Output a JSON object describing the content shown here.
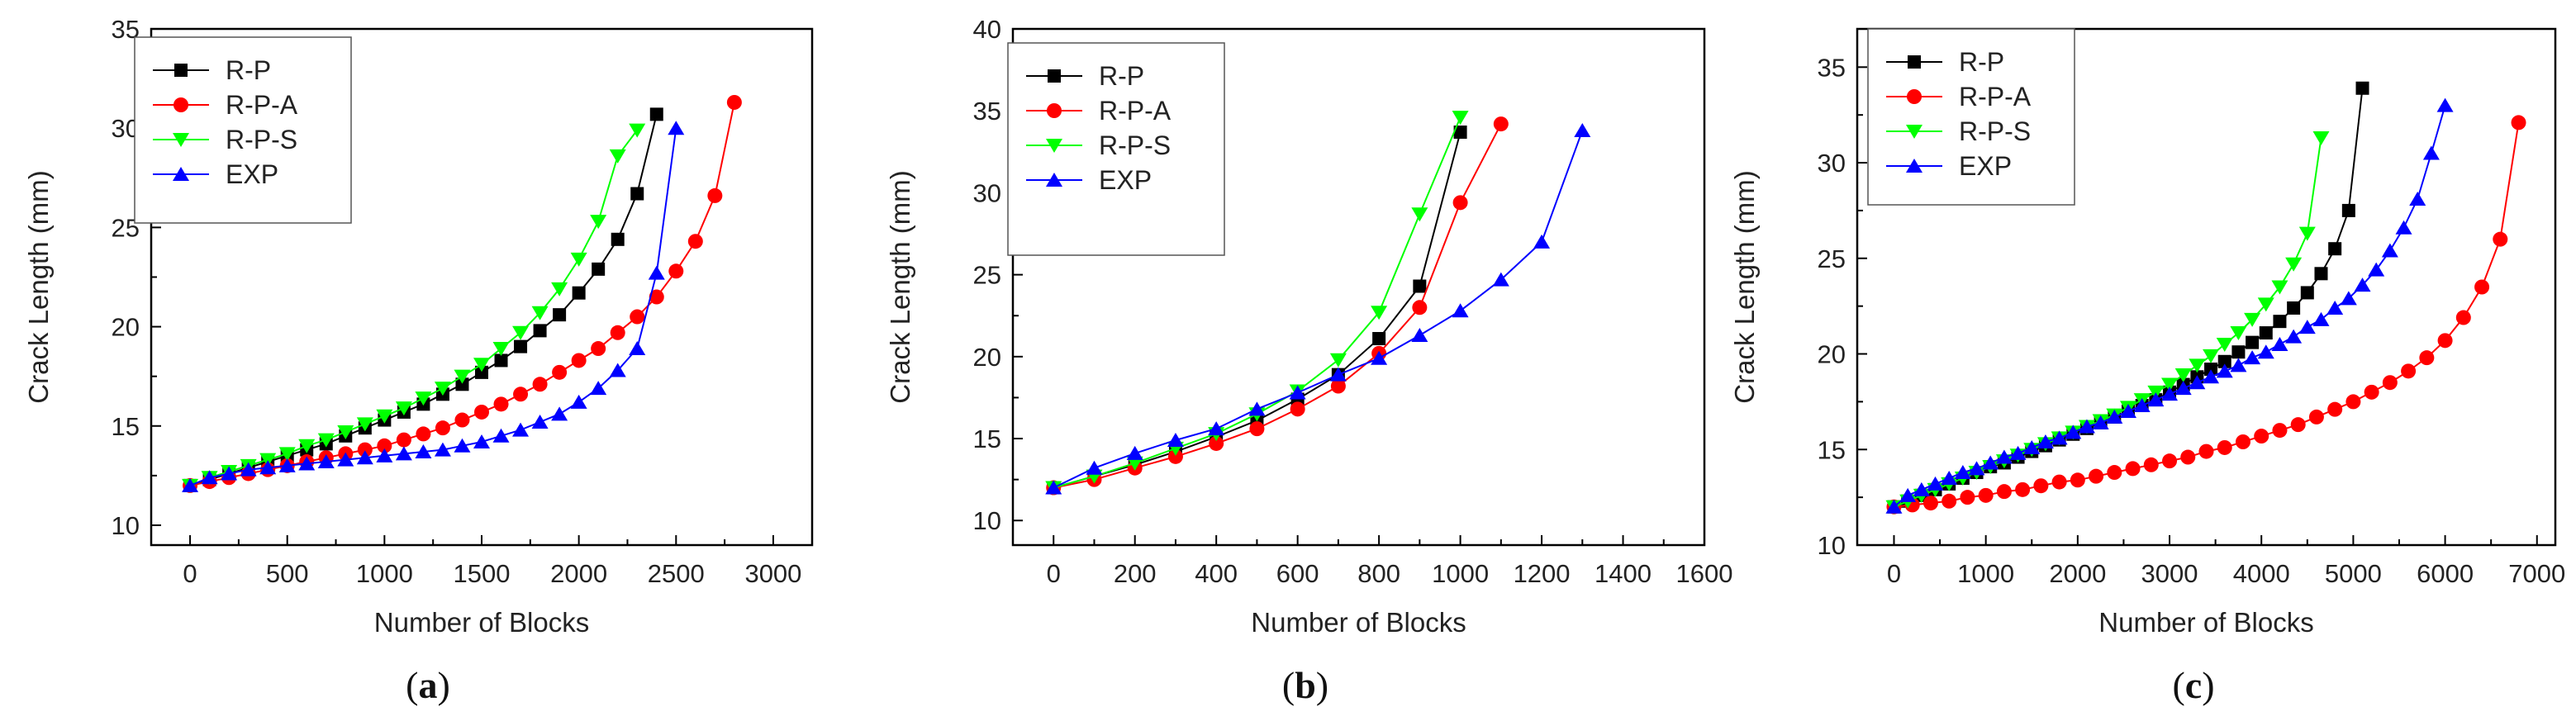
{
  "colors": {
    "R-P": "#000000",
    "R-P-A": "#ff0000",
    "R-P-S": "#00ff00",
    "EXP": "#0000ff"
  },
  "chart_data": [
    {
      "type": "line",
      "caption": "a",
      "xlabel": "Number of Blocks",
      "ylabel": "Crack Length (mm)",
      "xlim": [
        -200,
        3200
      ],
      "ylim": [
        9,
        35
      ],
      "xticks": [
        0,
        500,
        1000,
        1500,
        2000,
        2500,
        3000
      ],
      "xtick_labels": [
        "0",
        "500",
        "1000",
        "1500",
        "2000",
        "2500",
        "3000"
      ],
      "yticks": [
        10,
        15,
        20,
        25,
        30,
        35
      ],
      "ytick_labels": [
        "10",
        "15",
        "20",
        "25",
        "30",
        "35"
      ],
      "legend_position": "top-left",
      "series": [
        {
          "name": "R-P",
          "marker": "square",
          "x": [
            0,
            100,
            200,
            300,
            400,
            500,
            600,
            700,
            800,
            900,
            1000,
            1100,
            1200,
            1300,
            1400,
            1500,
            1600,
            1700,
            1800,
            1900,
            2000,
            2100,
            2200,
            2300,
            2400
          ],
          "y": [
            12.0,
            12.3,
            12.6,
            12.9,
            13.2,
            13.5,
            13.8,
            14.1,
            14.5,
            14.9,
            15.3,
            15.7,
            16.1,
            16.6,
            17.1,
            17.7,
            18.3,
            19.0,
            19.8,
            20.6,
            21.7,
            22.9,
            24.4,
            26.7,
            30.7
          ]
        },
        {
          "name": "R-P-A",
          "marker": "circle",
          "x": [
            0,
            100,
            200,
            300,
            400,
            500,
            600,
            700,
            800,
            900,
            1000,
            1100,
            1200,
            1300,
            1400,
            1500,
            1600,
            1700,
            1800,
            1900,
            2000,
            2100,
            2200,
            2300,
            2400,
            2500,
            2600,
            2700,
            2800
          ],
          "y": [
            12.0,
            12.2,
            12.4,
            12.6,
            12.8,
            13.0,
            13.2,
            13.4,
            13.6,
            13.8,
            14.0,
            14.3,
            14.6,
            14.9,
            15.3,
            15.7,
            16.1,
            16.6,
            17.1,
            17.7,
            18.3,
            18.9,
            19.7,
            20.5,
            21.5,
            22.8,
            24.3,
            26.6,
            31.3
          ]
        },
        {
          "name": "R-P-S",
          "marker": "triangle-down",
          "x": [
            0,
            100,
            200,
            300,
            400,
            500,
            600,
            700,
            800,
            900,
            1000,
            1100,
            1200,
            1300,
            1400,
            1500,
            1600,
            1700,
            1800,
            1900,
            2000,
            2100,
            2200,
            2300
          ],
          "y": [
            12.0,
            12.4,
            12.7,
            13.0,
            13.3,
            13.6,
            14.0,
            14.3,
            14.7,
            15.1,
            15.5,
            15.9,
            16.4,
            16.9,
            17.5,
            18.1,
            18.9,
            19.7,
            20.7,
            21.9,
            23.4,
            25.3,
            28.6,
            29.9
          ]
        },
        {
          "name": "EXP",
          "marker": "triangle-up",
          "x": [
            0,
            100,
            200,
            300,
            400,
            500,
            600,
            700,
            800,
            900,
            1000,
            1100,
            1200,
            1300,
            1400,
            1500,
            1600,
            1700,
            1800,
            1900,
            2000,
            2100,
            2200,
            2300,
            2400,
            2500
          ],
          "y": [
            12.0,
            12.4,
            12.6,
            12.8,
            12.9,
            13.0,
            13.1,
            13.2,
            13.3,
            13.4,
            13.5,
            13.6,
            13.7,
            13.8,
            14.0,
            14.2,
            14.5,
            14.8,
            15.2,
            15.6,
            16.2,
            16.9,
            17.8,
            18.9,
            22.7,
            30.0
          ]
        }
      ]
    },
    {
      "type": "line",
      "caption": "b",
      "xlabel": "Number of Blocks",
      "ylabel": "Crack Length (mm)",
      "xlim": [
        -100,
        1600
      ],
      "ylim": [
        8.5,
        40
      ],
      "xticks": [
        0,
        200,
        400,
        600,
        800,
        1000,
        1200,
        1400,
        1600
      ],
      "xtick_labels": [
        "0",
        "200",
        "400",
        "600",
        "800",
        "1000",
        "1200",
        "1400",
        "1600"
      ],
      "yticks": [
        10,
        15,
        20,
        25,
        30,
        35,
        40
      ],
      "ytick_labels": [
        "10",
        "15",
        "20",
        "25",
        "30",
        "35",
        "40"
      ],
      "legend_position": "top-left",
      "series": [
        {
          "name": "R-P",
          "marker": "square",
          "x": [
            0,
            100,
            200,
            300,
            400,
            500,
            600,
            700,
            800,
            900,
            1000
          ],
          "y": [
            12.0,
            12.7,
            13.4,
            14.2,
            15.1,
            16.1,
            17.4,
            18.9,
            21.1,
            24.3,
            33.7
          ]
        },
        {
          "name": "R-P-A",
          "marker": "circle",
          "x": [
            0,
            100,
            200,
            300,
            400,
            500,
            600,
            700,
            800,
            900,
            1000,
            1100
          ],
          "y": [
            12.0,
            12.5,
            13.2,
            13.9,
            14.7,
            15.6,
            16.8,
            18.2,
            20.2,
            23.0,
            29.4,
            34.2
          ]
        },
        {
          "name": "R-P-S",
          "marker": "triangle-down",
          "x": [
            0,
            100,
            200,
            300,
            400,
            500,
            600,
            700,
            800,
            900,
            1000
          ],
          "y": [
            12.0,
            12.7,
            13.5,
            14.4,
            15.3,
            16.5,
            17.9,
            19.8,
            22.7,
            28.7,
            34.6
          ]
        },
        {
          "name": "EXP",
          "marker": "triangle-up",
          "x": [
            0,
            100,
            200,
            300,
            400,
            500,
            600,
            700,
            800,
            900,
            1000,
            1100,
            1200,
            1300
          ],
          "y": [
            12.0,
            13.2,
            14.1,
            14.9,
            15.6,
            16.8,
            17.8,
            18.9,
            19.9,
            21.3,
            22.8,
            24.7,
            27.0,
            33.8
          ]
        }
      ]
    },
    {
      "type": "line",
      "caption": "c",
      "xlabel": "Number of Blocks",
      "ylabel": "Crack Length (mm)",
      "xlim": [
        -400,
        7200
      ],
      "ylim": [
        10,
        37
      ],
      "xticks": [
        0,
        1000,
        2000,
        3000,
        4000,
        5000,
        6000,
        7000
      ],
      "xtick_labels": [
        "0",
        "1000",
        "2000",
        "3000",
        "4000",
        "5000",
        "6000",
        "7000"
      ],
      "yticks": [
        10,
        15,
        20,
        25,
        30,
        35
      ],
      "ytick_labels": [
        "10",
        "15",
        "20",
        "25",
        "30",
        "35"
      ],
      "legend_position": "top-left",
      "series": [
        {
          "name": "R-P",
          "marker": "square",
          "x": [
            0,
            150,
            300,
            450,
            600,
            750,
            900,
            1050,
            1200,
            1350,
            1500,
            1650,
            1800,
            1950,
            2100,
            2250,
            2400,
            2550,
            2700,
            2850,
            3000,
            3150,
            3300,
            3450,
            3600,
            3750,
            3900,
            4050,
            4200,
            4350,
            4500,
            4650,
            4800,
            4950,
            5100
          ],
          "y": [
            12.0,
            12.3,
            12.6,
            12.9,
            13.2,
            13.5,
            13.8,
            14.1,
            14.3,
            14.6,
            14.9,
            15.2,
            15.5,
            15.8,
            16.1,
            16.4,
            16.7,
            17.0,
            17.3,
            17.6,
            18.0,
            18.4,
            18.8,
            19.2,
            19.6,
            20.1,
            20.6,
            21.1,
            21.7,
            22.4,
            23.2,
            24.2,
            25.5,
            27.5,
            33.9
          ]
        },
        {
          "name": "R-P-A",
          "marker": "circle",
          "x": [
            0,
            200,
            400,
            600,
            800,
            1000,
            1200,
            1400,
            1600,
            1800,
            2000,
            2200,
            2400,
            2600,
            2800,
            3000,
            3200,
            3400,
            3600,
            3800,
            4000,
            4200,
            4400,
            4600,
            4800,
            5000,
            5200,
            5400,
            5600,
            5800,
            6000,
            6200,
            6400,
            6600,
            6800
          ],
          "y": [
            12.0,
            12.1,
            12.2,
            12.3,
            12.5,
            12.6,
            12.8,
            12.9,
            13.1,
            13.3,
            13.4,
            13.6,
            13.8,
            14.0,
            14.2,
            14.4,
            14.6,
            14.9,
            15.1,
            15.4,
            15.7,
            16.0,
            16.3,
            16.7,
            17.1,
            17.5,
            18.0,
            18.5,
            19.1,
            19.8,
            20.7,
            21.9,
            23.5,
            26.0,
            32.1
          ]
        },
        {
          "name": "R-P-S",
          "marker": "triangle-down",
          "x": [
            0,
            150,
            300,
            450,
            600,
            750,
            900,
            1050,
            1200,
            1350,
            1500,
            1650,
            1800,
            1950,
            2100,
            2250,
            2400,
            2550,
            2700,
            2850,
            3000,
            3150,
            3300,
            3450,
            3600,
            3750,
            3900,
            4050,
            4200,
            4350,
            4500,
            4650
          ],
          "y": [
            12.0,
            12.3,
            12.6,
            12.9,
            13.2,
            13.5,
            13.8,
            14.1,
            14.4,
            14.7,
            15.0,
            15.3,
            15.6,
            15.9,
            16.2,
            16.5,
            16.8,
            17.2,
            17.6,
            18.0,
            18.4,
            18.9,
            19.4,
            19.9,
            20.5,
            21.1,
            21.8,
            22.6,
            23.5,
            24.7,
            26.3,
            31.3
          ]
        },
        {
          "name": "EXP",
          "marker": "triangle-up",
          "x": [
            0,
            150,
            300,
            450,
            600,
            750,
            900,
            1050,
            1200,
            1350,
            1500,
            1650,
            1800,
            1950,
            2100,
            2250,
            2400,
            2550,
            2700,
            2850,
            3000,
            3150,
            3300,
            3450,
            3600,
            3750,
            3900,
            4050,
            4200,
            4350,
            4500,
            4650,
            4800,
            4950,
            5100,
            5250,
            5400,
            5550,
            5700,
            5850,
            6000
          ],
          "y": [
            12.0,
            12.6,
            12.9,
            13.2,
            13.5,
            13.8,
            14.0,
            14.3,
            14.6,
            14.8,
            15.1,
            15.4,
            15.6,
            15.9,
            16.2,
            16.4,
            16.7,
            17.0,
            17.3,
            17.6,
            17.9,
            18.2,
            18.5,
            18.8,
            19.1,
            19.4,
            19.8,
            20.1,
            20.5,
            20.9,
            21.4,
            21.8,
            22.4,
            22.9,
            23.6,
            24.4,
            25.4,
            26.6,
            28.1,
            30.5,
            33.0
          ]
        }
      ]
    }
  ]
}
